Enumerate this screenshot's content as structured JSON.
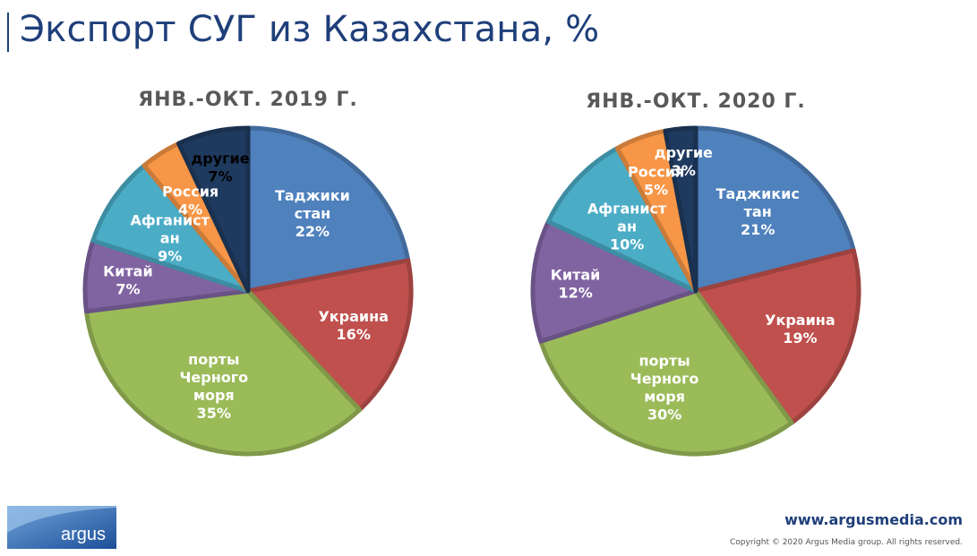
{
  "page": {
    "title": "Экспорт СУГ из Казахстана, %",
    "footer_url": "www.argusmedia.com",
    "copyright": "Copyright © 2020 Argus Media group. All rights reserved.",
    "logo_text": "argus"
  },
  "colors": {
    "title": "#1f3f7a",
    "slice_tajikistan": "#4f81bd",
    "slice_ukraine": "#c0504d",
    "slice_black_sea": "#9bbb59",
    "slice_china": "#8064a2",
    "slice_afghanistan": "#4bacc6",
    "slice_russia": "#f79646",
    "slice_other": "#1f3a5f"
  },
  "chart_data": [
    {
      "type": "pie",
      "title": "ЯНВ.-ОКТ. 2019 Г.",
      "slices": [
        {
          "label": [
            "Таджики",
            "стан"
          ],
          "pct": "22%",
          "value": 22,
          "color": "#4f81bd"
        },
        {
          "label": [
            "Украина"
          ],
          "pct": "16%",
          "value": 16,
          "color": "#c0504d"
        },
        {
          "label": [
            "порты",
            "Черного",
            "моря"
          ],
          "pct": "35%",
          "value": 35,
          "color": "#9bbb59"
        },
        {
          "label": [
            "Китай"
          ],
          "pct": "7%",
          "value": 7,
          "color": "#8064a2"
        },
        {
          "label": [
            "Афганист",
            "ан"
          ],
          "pct": "9%",
          "value": 9,
          "color": "#4bacc6"
        },
        {
          "label": [
            "Россия"
          ],
          "pct": "4%",
          "value": 4,
          "color": "#f79646"
        },
        {
          "label": [
            "другие"
          ],
          "pct": "7%",
          "value": 7,
          "color": "#1f3a5f"
        }
      ]
    },
    {
      "type": "pie",
      "title": "ЯНВ.-ОКТ. 2020 Г.",
      "slices": [
        {
          "label": [
            "Таджикис",
            "тан"
          ],
          "pct": "21%",
          "value": 21,
          "color": "#4f81bd"
        },
        {
          "label": [
            "Украина"
          ],
          "pct": "19%",
          "value": 19,
          "color": "#c0504d"
        },
        {
          "label": [
            "порты",
            "Черного",
            "моря"
          ],
          "pct": "30%",
          "value": 30,
          "color": "#9bbb59"
        },
        {
          "label": [
            "Китай"
          ],
          "pct": "12%",
          "value": 12,
          "color": "#8064a2"
        },
        {
          "label": [
            "Афганист",
            "ан"
          ],
          "pct": "10%",
          "value": 10,
          "color": "#4bacc6"
        },
        {
          "label": [
            "Россия"
          ],
          "pct": "5%",
          "value": 5,
          "color": "#f79646"
        },
        {
          "label": [
            "другие"
          ],
          "pct": "3%",
          "value": 3,
          "color": "#1f3a5f"
        }
      ]
    }
  ]
}
